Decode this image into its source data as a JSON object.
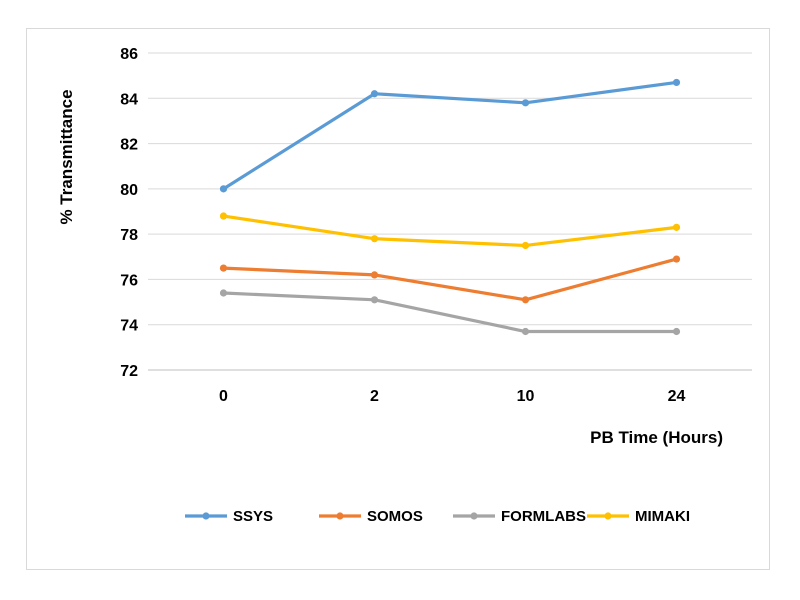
{
  "chart_data": {
    "type": "line",
    "title": "",
    "xlabel": "PB Time (Hours)",
    "ylabel": "% Transmittance",
    "categories": [
      "0",
      "2",
      "10",
      "24"
    ],
    "ylim": [
      72,
      86
    ],
    "yticks": [
      "72",
      "74",
      "76",
      "78",
      "80",
      "82",
      "84",
      "86"
    ],
    "grid": "horizontal",
    "legend_position": "bottom",
    "series": [
      {
        "name": "SSYS",
        "color": "#5b9bd5",
        "values": [
          80.0,
          84.2,
          83.8,
          84.7
        ]
      },
      {
        "name": "SOMOS",
        "color": "#ed7d31",
        "values": [
          76.5,
          76.2,
          75.1,
          76.9
        ]
      },
      {
        "name": "FORMLABS",
        "color": "#a5a5a5",
        "values": [
          75.4,
          75.1,
          73.7,
          73.7
        ]
      },
      {
        "name": "MIMAKI",
        "color": "#ffc000",
        "values": [
          78.8,
          77.8,
          77.5,
          78.3
        ]
      }
    ]
  }
}
